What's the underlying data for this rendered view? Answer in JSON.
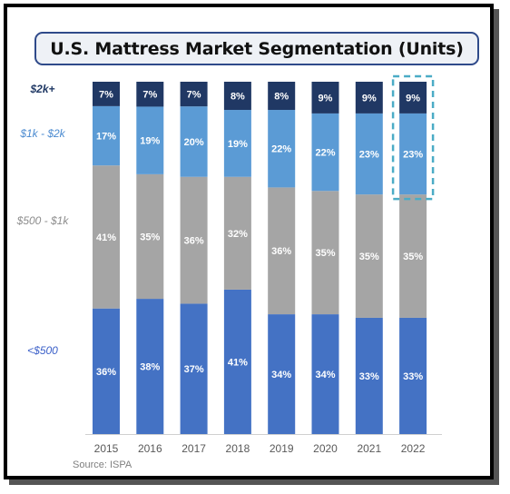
{
  "chart_data": {
    "type": "bar",
    "stacked": true,
    "title": "U.S. Mattress Market Segmentation (Units)",
    "source": "Source: ISPA",
    "categories": [
      "2015",
      "2016",
      "2017",
      "2018",
      "2019",
      "2020",
      "2021",
      "2022"
    ],
    "series": [
      {
        "name": "<$500",
        "values": [
          36,
          38,
          37,
          41,
          34,
          34,
          33,
          33
        ],
        "labels": [
          "36%",
          "38%",
          "37%",
          "41%",
          "34%",
          "34%",
          "33%",
          "33%"
        ],
        "color": "#4472c4"
      },
      {
        "name": "$500 - $1k",
        "values": [
          41,
          35,
          36,
          32,
          36,
          35,
          35,
          35
        ],
        "labels": [
          "41%",
          "35%",
          "36%",
          "32%",
          "36%",
          "35%",
          "35%",
          "35%"
        ],
        "color": "#a5a5a5"
      },
      {
        "name": "$1k - $2k",
        "values": [
          17,
          19,
          20,
          19,
          22,
          22,
          23,
          23
        ],
        "labels": [
          "17%",
          "19%",
          "20%",
          "19%",
          "22%",
          "22%",
          "23%",
          "23%"
        ],
        "color": "#5b9bd5"
      },
      {
        "name": "$2k+",
        "values": [
          7,
          7,
          7,
          8,
          8,
          9,
          9,
          9
        ],
        "labels": [
          "7%",
          "7%",
          "7%",
          "8%",
          "8%",
          "9%",
          "9%",
          "9%"
        ],
        "color": "#203864"
      }
    ],
    "legend_colors": [
      "#4472c4",
      "#a5a5a5",
      "#5b9bd5",
      "#203864"
    ],
    "highlight": {
      "category": "2022",
      "series": [
        "$1k - $2k",
        "$2k+"
      ],
      "color": "#4bacc6"
    },
    "ylim": [
      0,
      100
    ],
    "legend_position": "left"
  }
}
